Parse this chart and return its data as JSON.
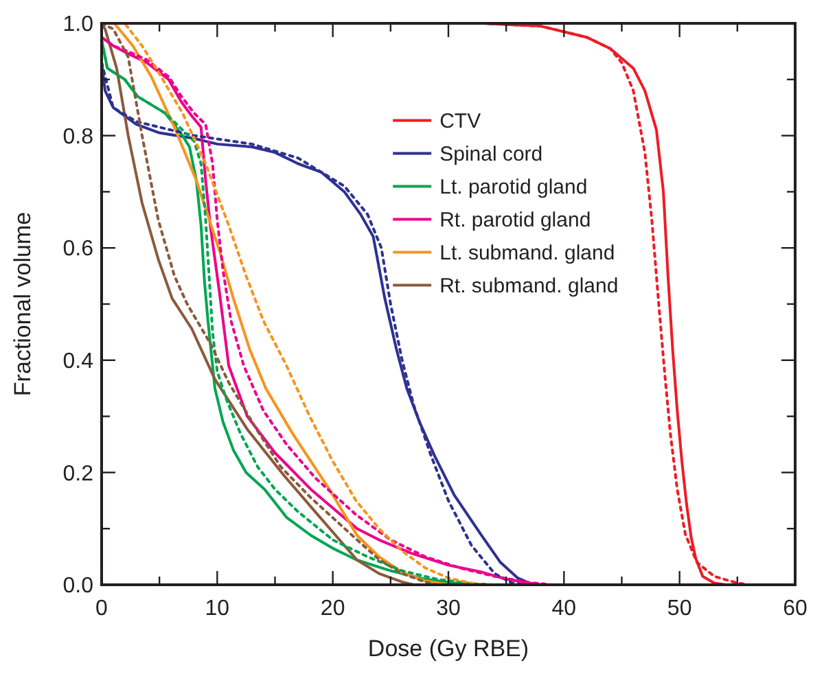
{
  "chart_data": {
    "type": "line",
    "xlabel": "Dose (Gy RBE)",
    "ylabel": "Fractional volume",
    "xlim": [
      0,
      60
    ],
    "ylim": [
      0,
      1
    ],
    "xticks": [
      0,
      {
        "value": 5,
        "label": null
      },
      10,
      {
        "value": 15,
        "label": null
      },
      20,
      {
        "value": 25,
        "label": null
      },
      30,
      {
        "value": 35,
        "label": null
      },
      40,
      {
        "value": 45,
        "label": null
      },
      50,
      {
        "value": 55,
        "label": null
      },
      60
    ],
    "yticks": [
      {
        "value": 0,
        "label": "0.0"
      },
      {
        "value": 0.1,
        "label": null
      },
      {
        "value": 0.2,
        "label": "0.2"
      },
      {
        "value": 0.3,
        "label": null
      },
      {
        "value": 0.4,
        "label": "0.4"
      },
      {
        "value": 0.5,
        "label": null
      },
      {
        "value": 0.6,
        "label": "0.6"
      },
      {
        "value": 0.7,
        "label": null
      },
      {
        "value": 0.8,
        "label": "0.8"
      },
      {
        "value": 0.9,
        "label": null
      },
      {
        "value": 1,
        "label": "1.0"
      }
    ],
    "grid": false,
    "legend": "top right",
    "marker": "none",
    "series": [
      {
        "name": "CTV",
        "color": "#ee1c25",
        "line_style": "solid",
        "x": [
          0,
          33,
          38,
          42,
          44,
          46,
          47,
          48,
          48.6,
          49,
          49.4,
          49.8,
          50.2,
          50.6,
          51,
          51.4,
          52,
          53,
          54
        ],
        "values": [
          1,
          1,
          0.995,
          0.975,
          0.955,
          0.92,
          0.88,
          0.81,
          0.7,
          0.55,
          0.42,
          0.31,
          0.22,
          0.145,
          0.085,
          0.047,
          0.015,
          0.003,
          0
        ]
      },
      {
        "name": "Spinal cord",
        "color": "#2e3192",
        "line_style": "solid",
        "x": [
          0,
          0.3,
          1,
          2,
          3,
          5,
          8,
          10,
          13,
          15,
          17,
          19,
          21,
          22.4,
          23.5,
          24.5,
          25.5,
          26.4,
          27.5,
          28.8,
          30.5,
          32.8,
          34.5,
          36,
          37,
          38
        ],
        "values": [
          0.93,
          0.88,
          0.85,
          0.835,
          0.82,
          0.805,
          0.795,
          0.785,
          0.78,
          0.77,
          0.75,
          0.735,
          0.7,
          0.66,
          0.62,
          0.51,
          0.42,
          0.35,
          0.29,
          0.23,
          0.16,
          0.09,
          0.04,
          0.012,
          0.003,
          0
        ]
      },
      {
        "name": "Lt. parotid gland",
        "color": "#00a651",
        "line_style": "solid",
        "x": [
          0,
          0.5,
          2,
          3.1,
          5.5,
          7,
          7.6,
          8.2,
          8.6,
          8.9,
          9.2,
          9.4,
          9.8,
          10.5,
          11.4,
          12.5,
          14.1,
          16,
          18.1,
          20,
          22.1,
          25,
          28,
          31,
          33
        ],
        "values": [
          0.97,
          0.92,
          0.9,
          0.87,
          0.84,
          0.8,
          0.78,
          0.72,
          0.64,
          0.54,
          0.47,
          0.43,
          0.35,
          0.29,
          0.24,
          0.2,
          0.17,
          0.12,
          0.088,
          0.065,
          0.044,
          0.025,
          0.01,
          0.002,
          0
        ]
      },
      {
        "name": "Rt. parotid gland",
        "color": "#ec008c",
        "line_style": "solid",
        "x": [
          0,
          1,
          2.3,
          3.9,
          5.8,
          6.9,
          7.8,
          8.6,
          9,
          9.4,
          10.2,
          11,
          12.6,
          15,
          18.1,
          22.1,
          24,
          26.8,
          30,
          32.8,
          35,
          37,
          38
        ],
        "values": [
          0.975,
          0.96,
          0.946,
          0.93,
          0.9,
          0.86,
          0.835,
          0.815,
          0.72,
          0.64,
          0.52,
          0.39,
          0.3,
          0.235,
          0.17,
          0.1,
          0.08,
          0.056,
          0.035,
          0.023,
          0.01,
          0.003,
          0
        ]
      },
      {
        "name": "Lt. submand. gland",
        "color": "#f7941d",
        "line_style": "solid",
        "x": [
          0,
          1.1,
          2.7,
          4.3,
          6.3,
          8.2,
          10.2,
          11.4,
          12.8,
          14.2,
          16.5,
          19.7,
          22.1,
          24,
          26,
          28,
          30
        ],
        "values": [
          1,
          1,
          0.96,
          0.905,
          0.815,
          0.72,
          0.595,
          0.51,
          0.42,
          0.35,
          0.27,
          0.17,
          0.088,
          0.05,
          0.022,
          0.007,
          0
        ]
      },
      {
        "name": "Rt. submand. gland",
        "color": "#8b5a3c",
        "line_style": "solid",
        "x": [
          0,
          0.3,
          1.3,
          2.3,
          3.5,
          4.9,
          6.1,
          7.8,
          9.8,
          12.6,
          15.8,
          18.9,
          22.1,
          24,
          26,
          27
        ],
        "values": [
          1,
          0.99,
          0.92,
          0.8,
          0.68,
          0.58,
          0.51,
          0.456,
          0.366,
          0.277,
          0.194,
          0.12,
          0.044,
          0.02,
          0.005,
          0
        ]
      },
      {
        "color": "#ee1c25",
        "line_style": "dotted",
        "x": [
          0,
          33,
          38,
          42,
          44,
          45,
          46,
          47,
          47.6,
          48.2,
          48.7,
          49.2,
          49.8,
          50.5,
          51.5,
          53,
          55,
          56
        ],
        "values": [
          1,
          1,
          0.995,
          0.975,
          0.955,
          0.93,
          0.88,
          0.77,
          0.65,
          0.5,
          0.38,
          0.27,
          0.17,
          0.09,
          0.04,
          0.015,
          0.003,
          0
        ]
      },
      {
        "color": "#2e3192",
        "line_style": "dotted",
        "x": [
          0,
          1,
          3,
          8,
          13,
          17,
          21,
          23,
          24.2,
          25,
          26,
          27,
          28.5,
          30,
          32,
          34,
          35.5,
          36.5
        ],
        "values": [
          0.93,
          0.85,
          0.825,
          0.8,
          0.785,
          0.76,
          0.71,
          0.66,
          0.6,
          0.5,
          0.4,
          0.32,
          0.23,
          0.15,
          0.07,
          0.02,
          0.003,
          0
        ]
      },
      {
        "color": "#00a651",
        "line_style": "dotted",
        "x": [
          0,
          0.5,
          2,
          3.1,
          5.5,
          7,
          8,
          8.6,
          9,
          9.3,
          9.6,
          10,
          10.8,
          12,
          13.5,
          15,
          17,
          20,
          23,
          26,
          29,
          32,
          34
        ],
        "values": [
          0.97,
          0.92,
          0.9,
          0.87,
          0.84,
          0.81,
          0.79,
          0.75,
          0.65,
          0.55,
          0.45,
          0.38,
          0.33,
          0.27,
          0.21,
          0.17,
          0.13,
          0.08,
          0.05,
          0.025,
          0.01,
          0.002,
          0
        ]
      },
      {
        "color": "#ec008c",
        "line_style": "dotted",
        "x": [
          0,
          1,
          2.3,
          3.9,
          5.8,
          6.9,
          8,
          9,
          9.6,
          10,
          10.5,
          11.2,
          12.3,
          14,
          16,
          18.5,
          22,
          25,
          28,
          31,
          34,
          37,
          39
        ],
        "values": [
          0.975,
          0.96,
          0.95,
          0.935,
          0.905,
          0.87,
          0.84,
          0.82,
          0.75,
          0.65,
          0.56,
          0.47,
          0.39,
          0.31,
          0.25,
          0.19,
          0.125,
          0.08,
          0.05,
          0.03,
          0.015,
          0.004,
          0
        ]
      },
      {
        "color": "#f7941d",
        "line_style": "dotted",
        "x": [
          0,
          2,
          3.5,
          5,
          7,
          9,
          11,
          12.5,
          14,
          16,
          18,
          20,
          22,
          24,
          26,
          28,
          30,
          32,
          33
        ],
        "values": [
          1,
          1,
          0.96,
          0.91,
          0.84,
          0.75,
          0.64,
          0.55,
          0.47,
          0.39,
          0.3,
          0.22,
          0.15,
          0.1,
          0.06,
          0.03,
          0.012,
          0.003,
          0
        ]
      },
      {
        "color": "#8b5a3c",
        "line_style": "dotted",
        "x": [
          0,
          1,
          2.3,
          3.5,
          4.9,
          6.3,
          7.4,
          9.4,
          11,
          13.4,
          15.5,
          18.1,
          22.1,
          24,
          26,
          28,
          29
        ],
        "values": [
          1,
          0.99,
          0.94,
          0.8,
          0.65,
          0.55,
          0.5,
          0.43,
          0.36,
          0.277,
          0.21,
          0.155,
          0.08,
          0.045,
          0.02,
          0.005,
          0
        ]
      }
    ]
  }
}
